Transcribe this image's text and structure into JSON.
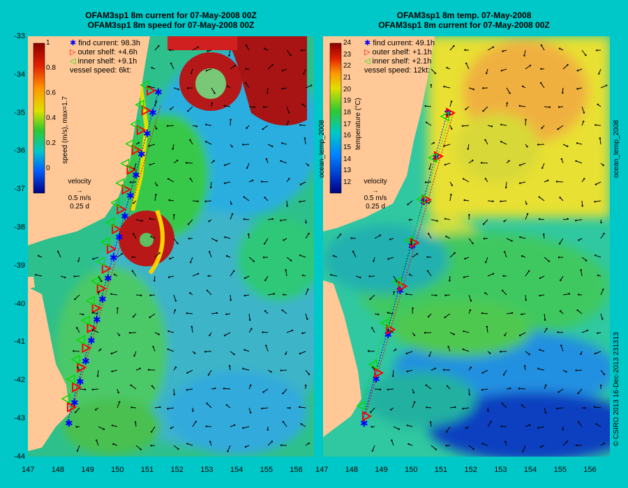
{
  "colors": {
    "frame_bg": "#00c8c8",
    "land": "#ffc896",
    "find_current_marker": "#0000ff",
    "outer_shelf_marker": "#ff0000",
    "inner_shelf_marker": "#00dd00"
  },
  "left_panel": {
    "title_line1": "OFAM3sp1 8m current for 07-May-2008 00Z",
    "title_line2": "OFAM3sp1 8m speed for 07-May-2008 00Z",
    "legend": {
      "find_current": "find current: 98.3h",
      "outer_shelf": "outer shelf: +4.6h",
      "inner_shelf": "inner shelf: +9.1h",
      "vessel_speed": "vessel speed: 6kt:"
    },
    "colorbar": {
      "label": "speed (m/s), max=1.7",
      "ticks": [
        "1",
        "0.8",
        "0.6",
        "0.4",
        "0.2",
        "0"
      ]
    },
    "velocity_key": {
      "title": "velocity",
      "speed": "0.5 m/s",
      "duration": "0.25 d"
    }
  },
  "right_panel": {
    "title_line1": "OFAM3sp1 8m temp. 07-May-2008",
    "title_line2": "OFAM3sp1 8m current for 07-May-2008 00Z",
    "legend": {
      "find_current": "find current: 49.1h",
      "outer_shelf": "outer shelf: +1.1h",
      "inner_shelf": "inner shelf: +2.1h",
      "vessel_speed": "vessel speed: 12kt:"
    },
    "colorbar": {
      "label": "temperature (°C)",
      "side_label": "ocean_temp_2008",
      "ticks": [
        "24",
        "23",
        "22",
        "21",
        "20",
        "19",
        "18",
        "17",
        "16",
        "15",
        "14",
        "13",
        "12"
      ]
    },
    "velocity_key": {
      "title": "velocity",
      "speed": "0.5 m/s",
      "duration": "0.25 d"
    }
  },
  "axes": {
    "y_ticks": [
      "-33",
      "-34",
      "-35",
      "-36",
      "-37",
      "-38",
      "-39",
      "-40",
      "-41",
      "-42",
      "-43",
      "-44"
    ],
    "x_ticks": [
      "147",
      "148",
      "149",
      "150",
      "151",
      "152",
      "153",
      "154",
      "155",
      "156"
    ]
  },
  "right_edge": {
    "dataset_label": "ocean_temp_2008",
    "credit": "© CSIRO 2013   16-Dec-2013 231313"
  }
}
